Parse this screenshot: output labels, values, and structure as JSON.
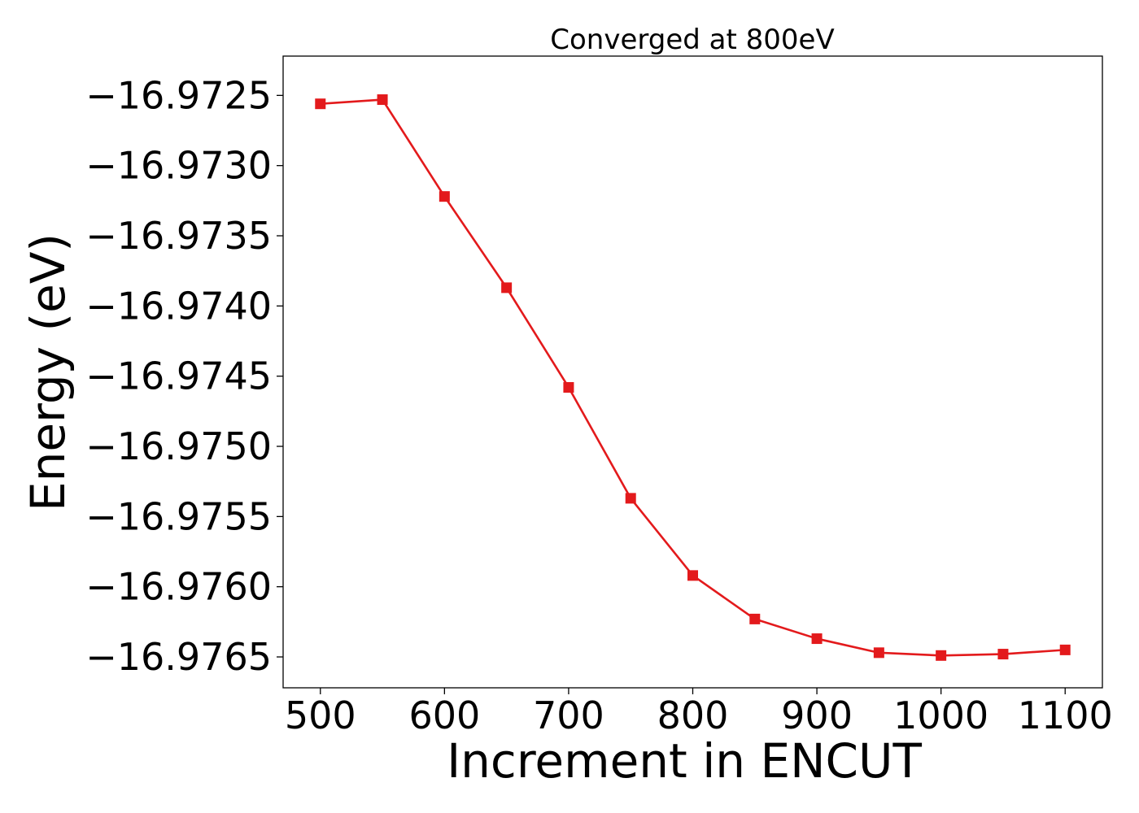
{
  "chart_data": {
    "type": "line",
    "title": "Converged at 800eV",
    "xlabel": "Increment in ENCUT",
    "ylabel": "Energy (eV)",
    "xlim": [
      470,
      1130
    ],
    "ylim": [
      -16.97672,
      -16.97222
    ],
    "x_ticks": [
      500,
      600,
      700,
      800,
      900,
      1000,
      1100
    ],
    "x_tick_labels": [
      "500",
      "600",
      "700",
      "800",
      "900",
      "1000",
      "1100"
    ],
    "y_ticks": [
      -16.9725,
      -16.973,
      -16.9735,
      -16.974,
      -16.9745,
      -16.975,
      -16.9755,
      -16.976,
      -16.9765
    ],
    "y_tick_labels": [
      "−16.9725",
      "−16.9730",
      "−16.9735",
      "−16.9740",
      "−16.9745",
      "−16.9750",
      "−16.9755",
      "−16.9760",
      "−16.9765"
    ],
    "grid": false,
    "series": [
      {
        "name": "Energy",
        "color": "#e31a1c",
        "marker": "square",
        "x": [
          500,
          550,
          600,
          650,
          700,
          750,
          800,
          850,
          900,
          950,
          1000,
          1050,
          1100
        ],
        "y": [
          -16.97256,
          -16.97253,
          -16.97322,
          -16.97387,
          -16.97458,
          -16.97537,
          -16.97592,
          -16.97623,
          -16.97637,
          -16.97647,
          -16.97649,
          -16.97648,
          -16.97645
        ]
      }
    ]
  }
}
